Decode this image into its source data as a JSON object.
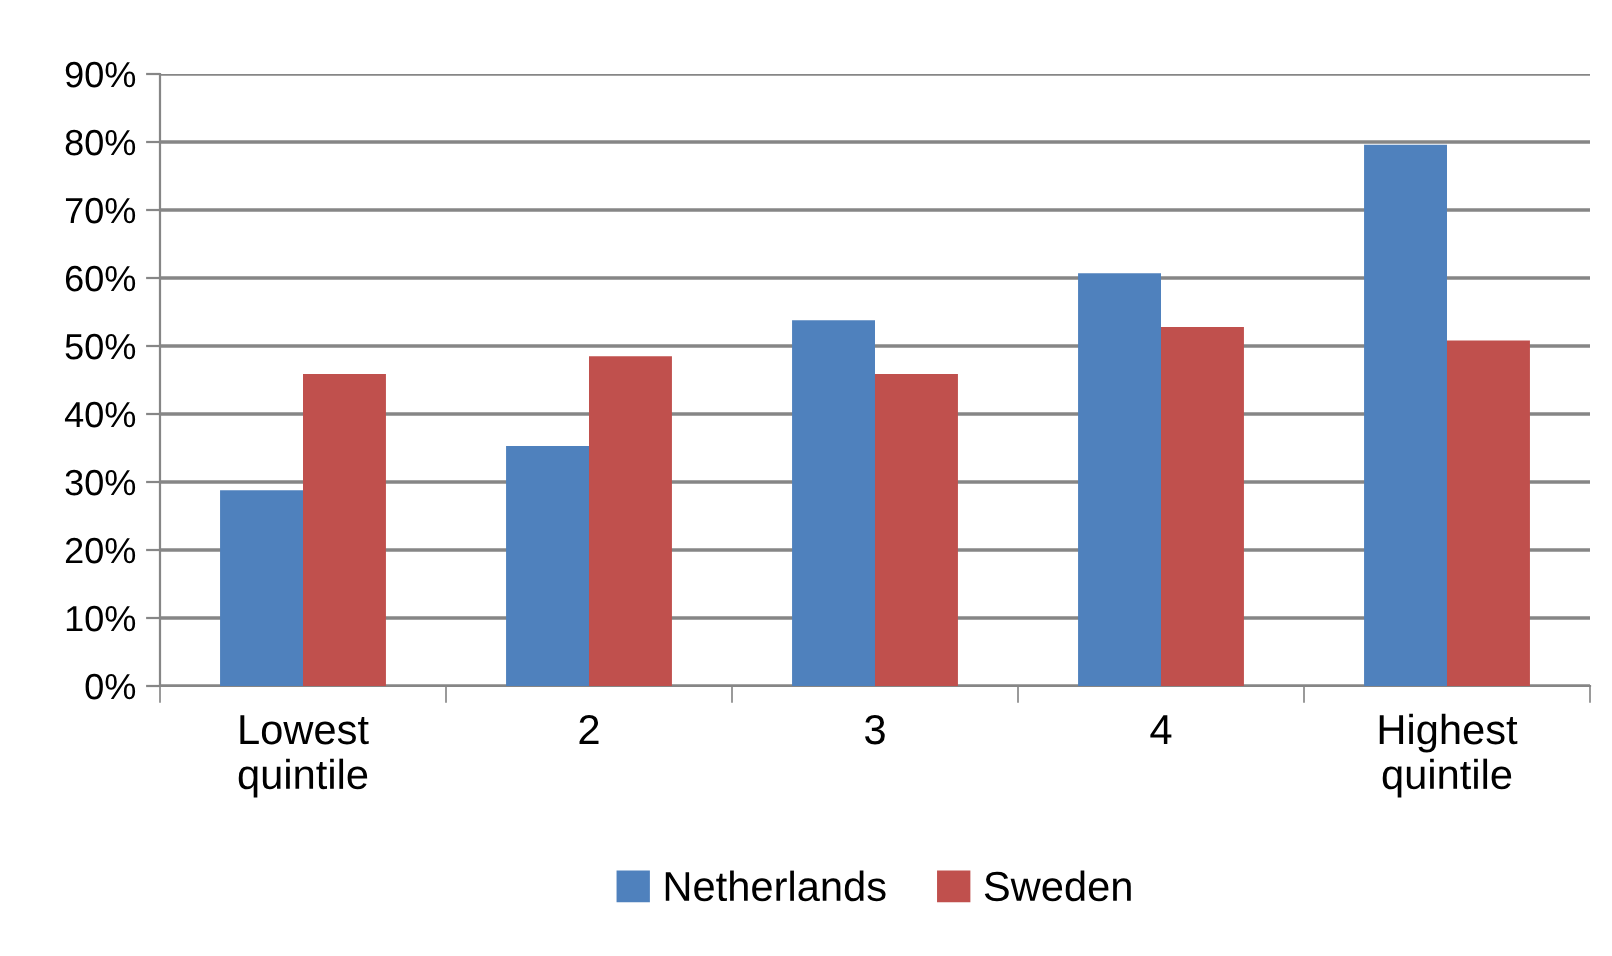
{
  "chart_data": {
    "type": "bar",
    "categories": [
      "Lowest\nquintile",
      "2",
      "3",
      "4",
      "Highest\nquintile"
    ],
    "series": [
      {
        "name": "Netherlands",
        "color": "#4f81bd",
        "values": [
          28.8,
          35.3,
          53.8,
          60.7,
          79.6
        ]
      },
      {
        "name": "Sweden",
        "color": "#c0504d",
        "values": [
          45.9,
          48.5,
          45.9,
          52.8,
          50.8
        ]
      }
    ],
    "ylim": [
      0,
      90
    ],
    "yticks": [
      {
        "value": 0,
        "label": "0%"
      },
      {
        "value": 10,
        "label": "10%"
      },
      {
        "value": 20,
        "label": "20%"
      },
      {
        "value": 30,
        "label": "30%"
      },
      {
        "value": 40,
        "label": "40%"
      },
      {
        "value": 50,
        "label": "50%"
      },
      {
        "value": 60,
        "label": "60%"
      },
      {
        "value": 70,
        "label": "70%"
      },
      {
        "value": 80,
        "label": "80%"
      },
      {
        "value": 90,
        "label": "90%"
      }
    ],
    "grid": "y",
    "legend": "bottom"
  }
}
